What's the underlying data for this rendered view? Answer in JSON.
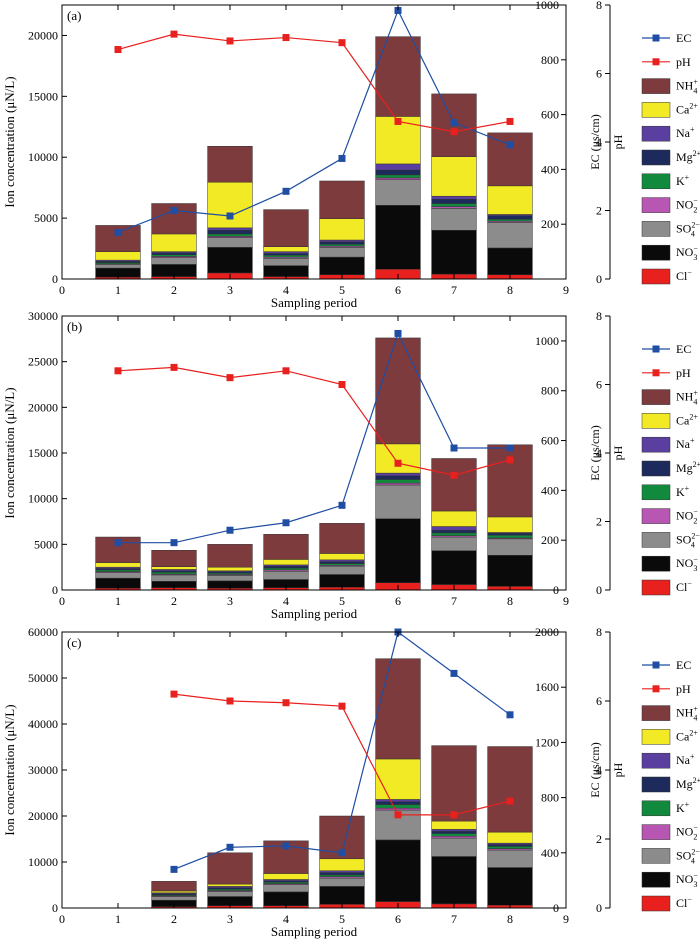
{
  "legend": [
    {
      "key": "EC",
      "label": "EC",
      "sup": "",
      "sub": "",
      "kind": "line",
      "color": "#1f4ea3"
    },
    {
      "key": "pH",
      "label": "pH",
      "sup": "",
      "sub": "",
      "kind": "line",
      "color": "#e8201e"
    },
    {
      "key": "NH4",
      "label": "NH",
      "sup": "+",
      "sub": "4",
      "kind": "box",
      "color": "#7d3b3d"
    },
    {
      "key": "Ca",
      "label": "Ca",
      "sup": "2+",
      "sub": "",
      "kind": "box",
      "color": "#f2ea24"
    },
    {
      "key": "Na",
      "label": "Na",
      "sup": "+",
      "sub": "",
      "kind": "box",
      "color": "#5b3fa0"
    },
    {
      "key": "Mg",
      "label": "Mg",
      "sup": "2+",
      "sub": "",
      "kind": "box",
      "color": "#1c2a5c"
    },
    {
      "key": "K",
      "label": "K",
      "sup": "+",
      "sub": "",
      "kind": "box",
      "color": "#128a3e"
    },
    {
      "key": "NO2",
      "label": "NO",
      "sup": "−",
      "sub": "2",
      "kind": "box",
      "color": "#b856b3"
    },
    {
      "key": "SO4",
      "label": "SO",
      "sup": "2−",
      "sub": "4",
      "kind": "box",
      "color": "#8c8c8c"
    },
    {
      "key": "NO3",
      "label": "NO",
      "sup": "−",
      "sub": "3",
      "kind": "box",
      "color": "#0a0a0a"
    },
    {
      "key": "Cl",
      "label": "Cl",
      "sup": "−",
      "sub": "",
      "kind": "box",
      "color": "#e8201e"
    }
  ],
  "chart_data": [
    {
      "type": "bar",
      "panel": "(a)",
      "stack_order": [
        "Cl",
        "NO3",
        "SO4",
        "NO2",
        "K",
        "Mg",
        "Na",
        "Ca",
        "NH4"
      ],
      "xlabel": "Sampling period",
      "ylabel": "Ion concentration (μN/L)",
      "y2label": "EC (μs/cm)",
      "y3label": "pH",
      "xlim": [
        0,
        9
      ],
      "xticks": [
        0,
        1,
        2,
        3,
        4,
        5,
        6,
        7,
        8,
        9
      ],
      "ylim": [
        0,
        22500
      ],
      "yticks": [
        0,
        5000,
        10000,
        15000,
        20000
      ],
      "ecLim": [
        0,
        1000
      ],
      "ecTicks": [
        200,
        400,
        600,
        800,
        1000
      ],
      "phLim": [
        0,
        8
      ],
      "phTicks": [
        0,
        2,
        4,
        6,
        8
      ],
      "categories": [
        1,
        2,
        3,
        4,
        5,
        6,
        7,
        8
      ],
      "series": [
        {
          "name": "Cl",
          "values": [
            150,
            200,
            500,
            200,
            350,
            800,
            400,
            350
          ]
        },
        {
          "name": "NO3",
          "values": [
            750,
            1000,
            2100,
            900,
            1450,
            5250,
            3600,
            2200
          ]
        },
        {
          "name": "SO4",
          "values": [
            300,
            550,
            800,
            600,
            800,
            2100,
            1800,
            2100
          ]
        },
        {
          "name": "NO2",
          "values": [
            50,
            100,
            100,
            100,
            100,
            150,
            150,
            100
          ]
        },
        {
          "name": "K",
          "values": [
            100,
            150,
            200,
            150,
            150,
            250,
            250,
            150
          ]
        },
        {
          "name": "Mg",
          "values": [
            100,
            150,
            300,
            150,
            200,
            400,
            350,
            300
          ]
        },
        {
          "name": "Na",
          "values": [
            100,
            100,
            200,
            150,
            150,
            500,
            250,
            100
          ]
        },
        {
          "name": "Ca",
          "values": [
            700,
            1450,
            3750,
            400,
            1750,
            3900,
            3250,
            2350
          ]
        },
        {
          "name": "NH4",
          "values": [
            2150,
            2500,
            2950,
            3050,
            3100,
            6550,
            5150,
            4350
          ]
        }
      ],
      "ec": [
        170,
        250,
        230,
        320,
        440,
        980,
        570,
        490
      ],
      "ph": [
        6.7,
        7.15,
        6.95,
        7.05,
        6.9,
        4.6,
        4.3,
        4.6
      ]
    },
    {
      "type": "bar",
      "panel": "(b)",
      "stack_order": [
        "Cl",
        "NO3",
        "SO4",
        "NO2",
        "K",
        "Mg",
        "Na",
        "Ca",
        "NH4"
      ],
      "xlabel": "Sampling period",
      "ylabel": "Ion concentration (μN/L)",
      "y2label": "EC (μs/cm)",
      "y3label": "pH",
      "xlim": [
        0,
        9
      ],
      "xticks": [
        0,
        1,
        2,
        3,
        4,
        5,
        6,
        7,
        8,
        9
      ],
      "ylim": [
        0,
        30000
      ],
      "yticks": [
        0,
        5000,
        10000,
        15000,
        20000,
        25000,
        30000
      ],
      "ecLim": [
        0,
        1100
      ],
      "ecTicks": [
        0,
        200,
        400,
        600,
        800,
        1000
      ],
      "phLim": [
        0,
        8
      ],
      "phTicks": [
        0,
        2,
        4,
        6,
        8
      ],
      "categories": [
        1,
        2,
        3,
        4,
        5,
        6,
        7,
        8
      ],
      "series": [
        {
          "name": "Cl",
          "values": [
            200,
            250,
            200,
            250,
            300,
            800,
            600,
            400
          ]
        },
        {
          "name": "NO3",
          "values": [
            1100,
            700,
            800,
            900,
            1400,
            7000,
            3700,
            3400
          ]
        },
        {
          "name": "SO4",
          "values": [
            600,
            700,
            600,
            900,
            900,
            3700,
            1500,
            1800
          ]
        },
        {
          "name": "NO2",
          "values": [
            100,
            100,
            100,
            150,
            100,
            200,
            150,
            100
          ]
        },
        {
          "name": "K",
          "values": [
            200,
            200,
            150,
            200,
            200,
            400,
            300,
            300
          ]
        },
        {
          "name": "Mg",
          "values": [
            150,
            150,
            150,
            200,
            200,
            400,
            300,
            200
          ]
        },
        {
          "name": "Na",
          "values": [
            150,
            150,
            100,
            150,
            200,
            300,
            400,
            100
          ]
        },
        {
          "name": "Ca",
          "values": [
            500,
            300,
            400,
            600,
            700,
            3200,
            1700,
            1700
          ]
        },
        {
          "name": "NH4",
          "values": [
            2800,
            1800,
            2500,
            2750,
            3300,
            11600,
            5750,
            7900
          ]
        }
      ],
      "ec": [
        190,
        190,
        240,
        270,
        340,
        1030,
        570,
        570
      ],
      "ph": [
        6.4,
        6.5,
        6.2,
        6.4,
        6.0,
        3.7,
        3.35,
        3.8
      ]
    },
    {
      "type": "bar",
      "panel": "(c)",
      "stack_order": [
        "Cl",
        "NO3",
        "SO4",
        "NO2",
        "K",
        "Mg",
        "Na",
        "Ca",
        "NH4"
      ],
      "xlabel": "Sampling period",
      "ylabel": "Ion concentration (μN/L)",
      "y2label": "EC (μs/cm)",
      "y3label": "pH",
      "xlim": [
        0,
        9
      ],
      "xticks": [
        0,
        1,
        2,
        3,
        4,
        5,
        6,
        7,
        8,
        9
      ],
      "ylim": [
        0,
        60000
      ],
      "yticks": [
        0,
        10000,
        20000,
        30000,
        40000,
        50000,
        60000
      ],
      "ecLim": [
        0,
        2000
      ],
      "ecTicks": [
        0,
        400,
        800,
        1200,
        1600,
        2000
      ],
      "phLim": [
        0,
        8
      ],
      "phTicks": [
        0,
        2,
        4,
        6,
        8
      ],
      "categories": [
        2,
        3,
        4,
        5,
        6,
        7,
        8
      ],
      "series": [
        {
          "name": "Cl",
          "values": [
            300,
            500,
            500,
            800,
            1400,
            900,
            600
          ]
        },
        {
          "name": "NO3",
          "values": [
            1400,
            2000,
            3000,
            3900,
            13400,
            10300,
            8200
          ]
        },
        {
          "name": "SO4",
          "values": [
            800,
            1100,
            1600,
            1800,
            6500,
            4000,
            3800
          ]
        },
        {
          "name": "NO2",
          "values": [
            150,
            200,
            200,
            300,
            400,
            400,
            300
          ]
        },
        {
          "name": "K",
          "values": [
            200,
            300,
            300,
            400,
            800,
            600,
            500
          ]
        },
        {
          "name": "Mg",
          "values": [
            250,
            300,
            300,
            500,
            600,
            500,
            400
          ]
        },
        {
          "name": "Na",
          "values": [
            200,
            300,
            300,
            400,
            500,
            400,
            300
          ]
        },
        {
          "name": "Ca",
          "values": [
            400,
            500,
            1300,
            2600,
            8800,
            1800,
            2400
          ]
        },
        {
          "name": "NH4",
          "values": [
            2100,
            6800,
            7100,
            9300,
            21800,
            16400,
            18600
          ]
        }
      ],
      "ec": [
        280,
        440,
        450,
        400,
        2000,
        1700,
        1400
      ],
      "ph": [
        6.2,
        6.0,
        5.95,
        5.85,
        2.7,
        2.7,
        3.1
      ]
    }
  ]
}
